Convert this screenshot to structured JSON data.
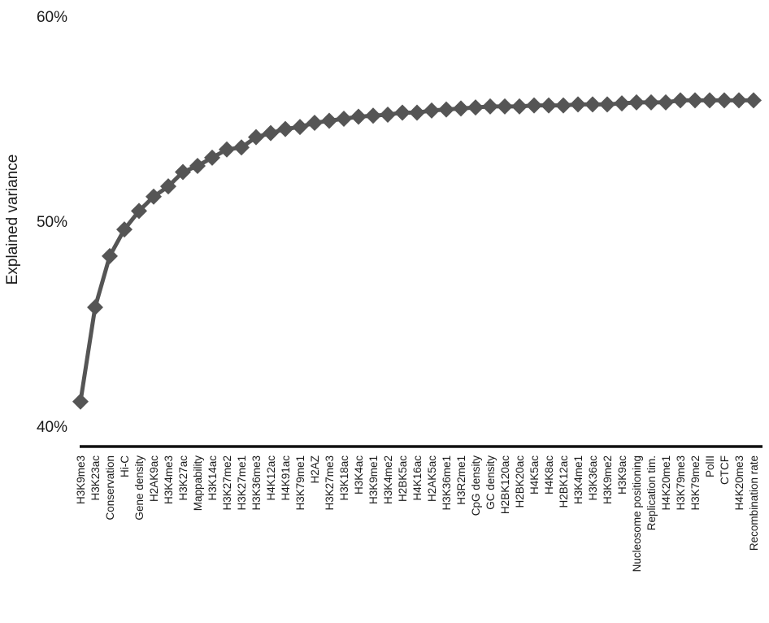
{
  "chart_data": {
    "type": "line",
    "title": "",
    "xlabel": "",
    "ylabel": "Explained variance",
    "ylim": [
      40,
      60
    ],
    "yticks": [
      {
        "value": 40,
        "label": "40%"
      },
      {
        "value": 50,
        "label": "50%"
      },
      {
        "value": 60,
        "label": "60%"
      }
    ],
    "grid": false,
    "legend": "none",
    "line_color": "#555555",
    "marker": "diamond",
    "categories": [
      "H3K9me3",
      "H3K23ac",
      "Conservation",
      "Hi-C",
      "Gene density",
      "H2AK9ac",
      "H3K4me3",
      "H3K27ac",
      "Mappability",
      "H3K14ac",
      "H3K27me2",
      "H3K27me1",
      "H3K36me3",
      "H4K12ac",
      "H4K91ac",
      "H3K79me1",
      "H2AZ",
      "H3K27me3",
      "H3K18ac",
      "H3K4ac",
      "H3K9me1",
      "H3K4me2",
      "H2BK5ac",
      "H4K16ac",
      "H2AK5ac",
      "H3K36me1",
      "H3R2me1",
      "CpG density",
      "GC density",
      "H2BK120ac",
      "H2BK20ac",
      "H4K5ac",
      "H4K8ac",
      "H2BK12ac",
      "H3K4me1",
      "H3K36ac",
      "H3K9me2",
      "H3K9ac",
      "Nucleosome positioning",
      "Replication tim.",
      "H4K20me1",
      "H3K79me3",
      "H3K79me2",
      "PolII",
      "CTCF",
      "H4K20me3",
      "Recombination rate"
    ],
    "series": [
      {
        "values": [
          41.2,
          45.8,
          48.3,
          49.6,
          50.5,
          51.2,
          51.7,
          52.4,
          52.7,
          53.1,
          53.5,
          53.6,
          54.1,
          54.3,
          54.5,
          54.6,
          54.8,
          54.9,
          55.0,
          55.1,
          55.15,
          55.2,
          55.3,
          55.3,
          55.4,
          55.45,
          55.5,
          55.55,
          55.6,
          55.6,
          55.6,
          55.65,
          55.65,
          55.65,
          55.7,
          55.7,
          55.7,
          55.75,
          55.8,
          55.8,
          55.8,
          55.9,
          55.9,
          55.9,
          55.9,
          55.9,
          55.9
        ]
      }
    ]
  }
}
